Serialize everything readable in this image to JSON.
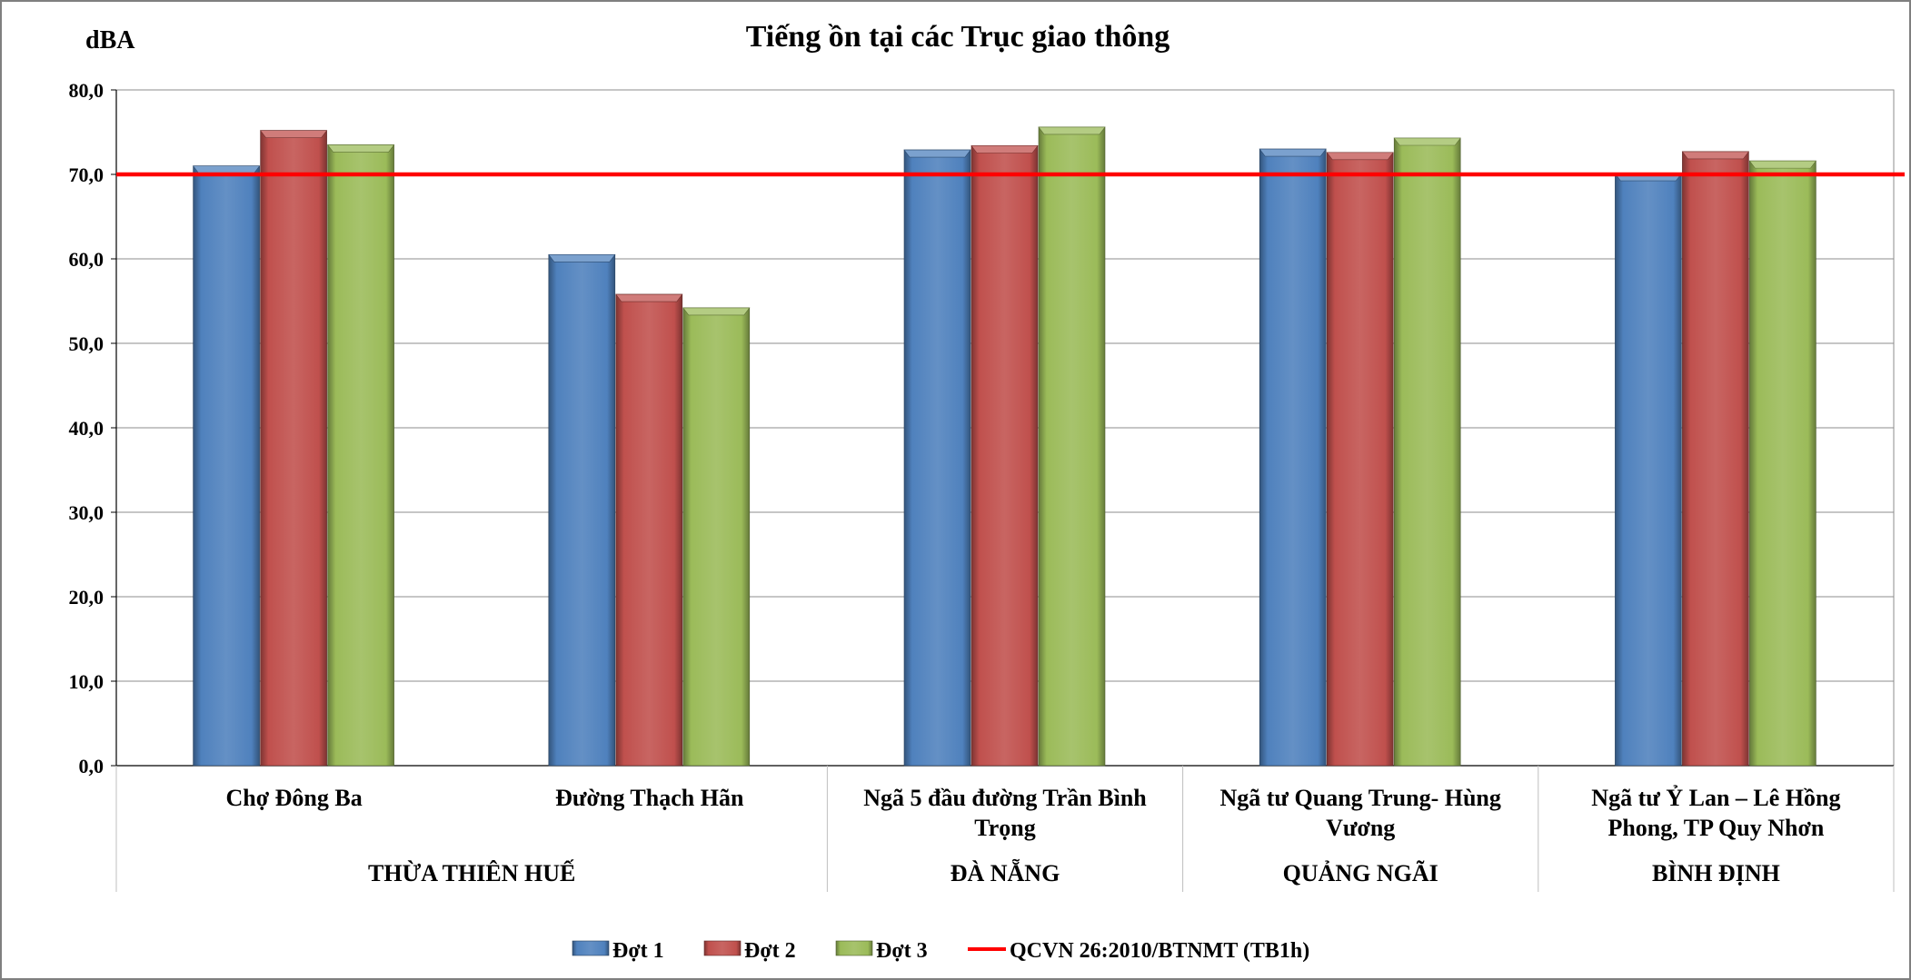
{
  "chart_data": {
    "type": "bar",
    "title": "Tiếng ồn tại các Trục giao thông",
    "ylabel": "dBA",
    "ylim": [
      0,
      80
    ],
    "yticks": [
      "0,0",
      "10,0",
      "20,0",
      "30,0",
      "40,0",
      "50,0",
      "60,0",
      "70,0",
      "80,0"
    ],
    "grid": true,
    "legend_position": "bottom",
    "categories": [
      "Chợ Đông Ba",
      "Đường Thạch Hãn",
      "Ngã 5 đầu đường Trần Bình Trọng",
      "Ngã tư Quang Trung- Hùng Vương",
      "Ngã tư Ỷ Lan – Lê Hồng Phong, TP Quy Nhơn"
    ],
    "category_lines": [
      [
        "Chợ Đông Ba"
      ],
      [
        "Đường Thạch Hãn"
      ],
      [
        "Ngã 5 đầu đường Trần Bình",
        "Trọng"
      ],
      [
        "Ngã tư Quang Trung- Hùng",
        "Vương"
      ],
      [
        "Ngã tư Ỷ Lan – Lê Hồng",
        "Phong, TP Quy Nhơn"
      ]
    ],
    "groups": [
      {
        "label": "THỪA THIÊN HUẾ",
        "categories": [
          0,
          1
        ]
      },
      {
        "label": "ĐÀ NẴNG",
        "categories": [
          2
        ]
      },
      {
        "label": "QUẢNG NGÃI",
        "categories": [
          3
        ]
      },
      {
        "label": "BÌNH ĐỊNH",
        "categories": [
          4
        ]
      }
    ],
    "series": [
      {
        "name": "Đợt 1",
        "color": "#4f81bd",
        "values": [
          71.0,
          60.5,
          72.9,
          73.0,
          70.1
        ]
      },
      {
        "name": "Đợt 2",
        "color": "#c0504d",
        "values": [
          75.2,
          55.8,
          73.4,
          72.6,
          72.7
        ]
      },
      {
        "name": "Đợt 3",
        "color": "#9bbb59",
        "values": [
          73.5,
          54.2,
          75.6,
          74.3,
          71.6
        ]
      }
    ],
    "reference_line": {
      "name": "QCVN 26:2010/BTNMT (TB1h)",
      "value": 70,
      "color": "#ff0000"
    }
  }
}
